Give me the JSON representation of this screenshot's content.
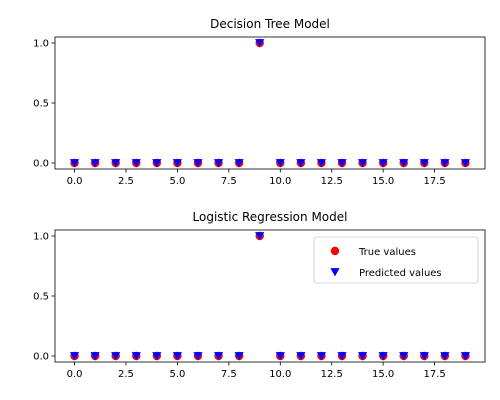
{
  "chart_data": [
    {
      "type": "scatter",
      "title": "Decision Tree Model",
      "xlabel": "",
      "ylabel": "",
      "xlim": [
        -0.95,
        19.95
      ],
      "ylim": [
        -0.05,
        1.05
      ],
      "xticks": [
        0.0,
        2.5,
        5.0,
        7.5,
        10.0,
        12.5,
        15.0,
        17.5
      ],
      "xtick_labels": [
        "0.0",
        "2.5",
        "5.0",
        "7.5",
        "10.0",
        "12.5",
        "15.0",
        "17.5"
      ],
      "yticks": [
        0.0,
        0.5,
        1.0
      ],
      "ytick_labels": [
        "0.0",
        "0.5",
        "1.0"
      ],
      "grid": false,
      "legend": null,
      "x": [
        0,
        1,
        2,
        3,
        4,
        5,
        6,
        7,
        8,
        9,
        10,
        11,
        12,
        13,
        14,
        15,
        16,
        17,
        18,
        19
      ],
      "series": [
        {
          "name": "True values",
          "marker": "circle",
          "color": "#ff0000",
          "values": [
            0,
            0,
            0,
            0,
            0,
            0,
            0,
            0,
            0,
            1,
            0,
            0,
            0,
            0,
            0,
            0,
            0,
            0,
            0,
            0
          ]
        },
        {
          "name": "Predicted values",
          "marker": "triangle-down",
          "color": "#0000ff",
          "values": [
            0,
            0,
            0,
            0,
            0,
            0,
            0,
            0,
            0,
            1,
            0,
            0,
            0,
            0,
            0,
            0,
            0,
            0,
            0,
            0
          ]
        }
      ]
    },
    {
      "type": "scatter",
      "title": "Logistic Regression Model",
      "xlabel": "",
      "ylabel": "",
      "xlim": [
        -0.95,
        19.95
      ],
      "ylim": [
        -0.05,
        1.05
      ],
      "xticks": [
        0.0,
        2.5,
        5.0,
        7.5,
        10.0,
        12.5,
        15.0,
        17.5
      ],
      "xtick_labels": [
        "0.0",
        "2.5",
        "5.0",
        "7.5",
        "10.0",
        "12.5",
        "15.0",
        "17.5"
      ],
      "yticks": [
        0.0,
        0.5,
        1.0
      ],
      "ytick_labels": [
        "0.0",
        "0.5",
        "1.0"
      ],
      "grid": false,
      "legend": "upper-right",
      "x": [
        0,
        1,
        2,
        3,
        4,
        5,
        6,
        7,
        8,
        9,
        10,
        11,
        12,
        13,
        14,
        15,
        16,
        17,
        18,
        19
      ],
      "series": [
        {
          "name": "True values",
          "marker": "circle",
          "color": "#ff0000",
          "values": [
            0,
            0,
            0,
            0,
            0,
            0,
            0,
            0,
            0,
            1,
            0,
            0,
            0,
            0,
            0,
            0,
            0,
            0,
            0,
            0
          ]
        },
        {
          "name": "Predicted values",
          "marker": "triangle-down",
          "color": "#0000ff",
          "values": [
            0,
            0,
            0,
            0,
            0,
            0,
            0,
            0,
            0,
            1,
            0,
            0,
            0,
            0,
            0,
            0,
            0,
            0,
            0,
            0
          ]
        }
      ]
    }
  ]
}
